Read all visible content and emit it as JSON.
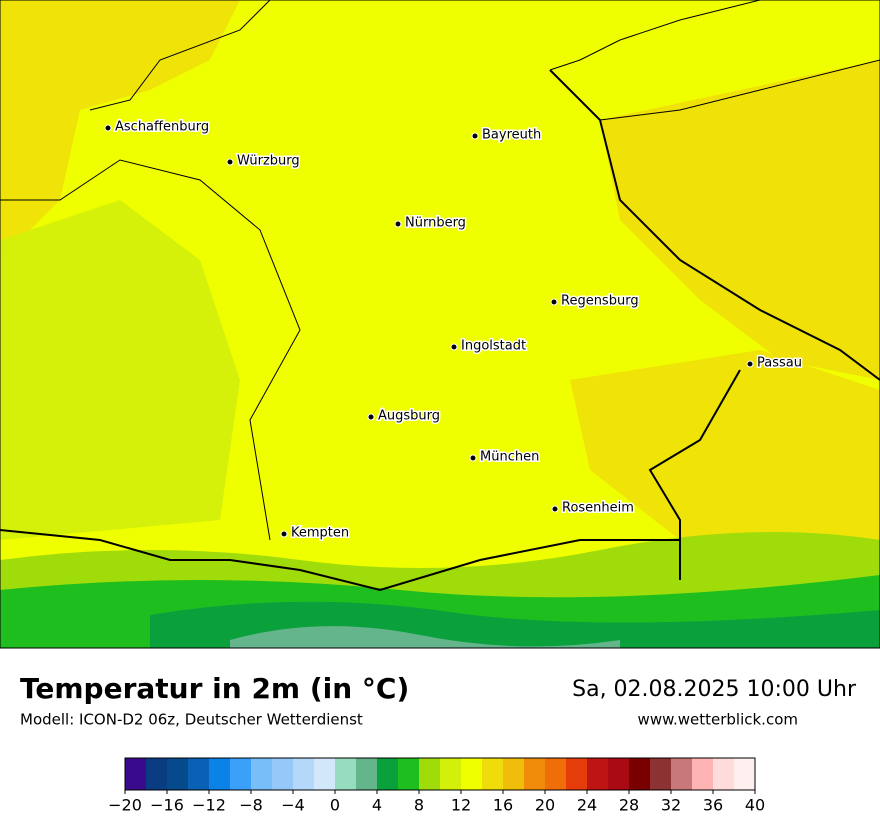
{
  "header": {
    "title": "Temperatur in 2m (in °C)",
    "subtitle": "Modell: ICON-D2 06z, Deutscher Wetterdienst",
    "datetime": "Sa, 02.08.2025 10:00 Uhr",
    "website": "www.wetterblick.com"
  },
  "map": {
    "cities": [
      "Aschaffenburg",
      "Würzburg",
      "Bayreuth",
      "Nürnberg",
      "Regensburg",
      "Ingolstadt",
      "Passau",
      "Augsburg",
      "München",
      "Rosenheim",
      "Kempten"
    ]
  },
  "legend": {
    "colors": [
      "#3a0a8c",
      "#0a3c82",
      "#044a8c",
      "#0a60b4",
      "#0a82e6",
      "#3aa0fa",
      "#78bef8",
      "#96c8fa",
      "#b4d8fa",
      "#d2e8fa",
      "#96dcbe",
      "#64b48c",
      "#0aa03c",
      "#1ebe1e",
      "#a0dc0a",
      "#d2f00a",
      "#f0ff00",
      "#f0dc0a",
      "#f0be0a",
      "#f08c0a",
      "#f06e0a",
      "#e63c0a",
      "#be1414",
      "#aa0a14",
      "#780000",
      "#8c3232",
      "#c87878",
      "#ffb4b4",
      "#ffdcdc",
      "#fff0f0"
    ],
    "ticks": [
      {
        "value": -20,
        "label": "−20"
      },
      {
        "value": -16,
        "label": "−16"
      },
      {
        "value": -12,
        "label": "−12"
      },
      {
        "value": -8,
        "label": "−8"
      },
      {
        "value": -4,
        "label": "−4"
      },
      0,
      4,
      8,
      12,
      16,
      20,
      24,
      28,
      32,
      36,
      40
    ]
  }
}
